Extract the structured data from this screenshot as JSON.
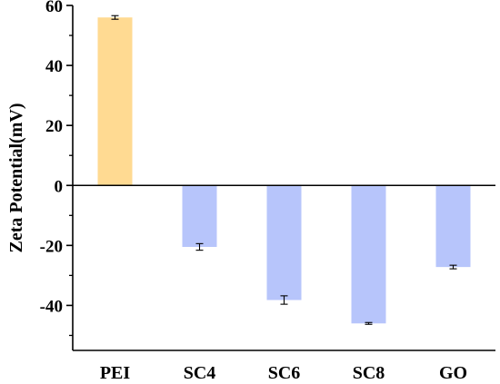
{
  "chart_data": {
    "type": "bar",
    "title": "",
    "xlabel": "",
    "ylabel": "Zeta Potential(mV)",
    "ylim": [
      -55,
      60
    ],
    "yticks": [
      60,
      40,
      20,
      0,
      -20,
      -40
    ],
    "ytick_labels": [
      "60",
      "40",
      "20",
      "0",
      "-20",
      "-40"
    ],
    "grid": false,
    "categories": [
      "PEI",
      "SC4",
      "SC6",
      "SC8",
      "GO"
    ],
    "values": [
      56,
      -20.5,
      -38.2,
      -46,
      -27.2
    ],
    "errors": [
      0.6,
      1.1,
      1.4,
      0.3,
      0.6
    ],
    "colors": [
      "#FFDA92",
      "#B7C5FB",
      "#B7C5FB",
      "#B7C5FB",
      "#B7C5FB"
    ]
  }
}
